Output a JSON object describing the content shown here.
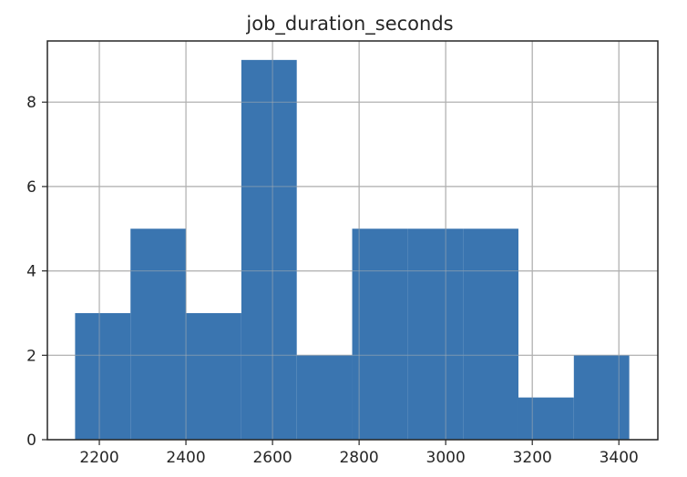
{
  "chart_data": {
    "type": "bar",
    "title": "job_duration_seconds",
    "xlabel": "",
    "ylabel": "",
    "bins": [
      {
        "start": 2144,
        "end": 2272,
        "count": 3
      },
      {
        "start": 2272,
        "end": 2400,
        "count": 5
      },
      {
        "start": 2400,
        "end": 2528,
        "count": 3
      },
      {
        "start": 2528,
        "end": 2656,
        "count": 9
      },
      {
        "start": 2656,
        "end": 2784,
        "count": 2
      },
      {
        "start": 2784,
        "end": 2912,
        "count": 5
      },
      {
        "start": 2912,
        "end": 3040,
        "count": 5
      },
      {
        "start": 3040,
        "end": 3168,
        "count": 5
      },
      {
        "start": 3168,
        "end": 3296,
        "count": 1
      },
      {
        "start": 3296,
        "end": 3424,
        "count": 2
      }
    ],
    "xlim": [
      2080,
      3490
    ],
    "ylim": [
      0,
      9.45
    ],
    "xticks": [
      2200,
      2400,
      2600,
      2800,
      3000,
      3200,
      3400
    ],
    "yticks": [
      0,
      2,
      4,
      6,
      8
    ],
    "grid": true,
    "colors": {
      "bar": "#3a75b0",
      "grid": "#b0b0b0",
      "axis": "#262626"
    }
  }
}
